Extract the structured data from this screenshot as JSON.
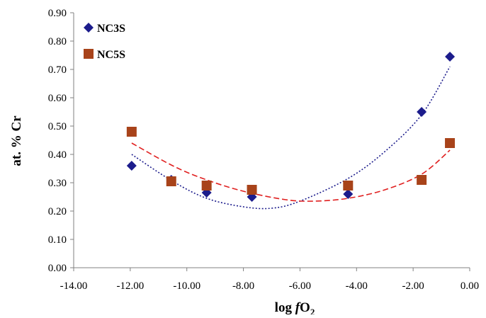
{
  "chart_data": {
    "type": "scatter",
    "title": "",
    "xlabel": "log fO2",
    "xlabel_parts": {
      "log": "log ",
      "f": "f",
      "O": "O",
      "sub": "2"
    },
    "ylabel": "at. % Cr",
    "xlim": [
      -14,
      0
    ],
    "ylim": [
      0,
      0.9
    ],
    "x_ticks": [
      -14,
      -12,
      -10,
      -8,
      -6,
      -4,
      -2,
      0
    ],
    "x_tick_labels": [
      "-14.00",
      "-12.00",
      "-10.00",
      "-8.00",
      "-6.00",
      "-4.00",
      "-2.00",
      "0.00"
    ],
    "y_ticks": [
      0,
      0.1,
      0.2,
      0.3,
      0.4,
      0.5,
      0.6,
      0.7,
      0.8,
      0.9
    ],
    "y_tick_labels": [
      "0.00",
      "0.10",
      "0.20",
      "0.30",
      "0.40",
      "0.50",
      "0.60",
      "0.70",
      "0.80",
      "0.90"
    ],
    "grid": false,
    "legend": "top-left",
    "series": [
      {
        "name": "NC3S",
        "marker": "diamond",
        "color": "#1c1c8c",
        "points": [
          {
            "x": -11.95,
            "y": 0.36
          },
          {
            "x": -10.55,
            "y": 0.31
          },
          {
            "x": -9.3,
            "y": 0.265
          },
          {
            "x": -7.7,
            "y": 0.25
          },
          {
            "x": -4.3,
            "y": 0.26
          },
          {
            "x": -1.7,
            "y": 0.55
          },
          {
            "x": -0.7,
            "y": 0.745
          }
        ],
        "trendline": {
          "type": "polynomial",
          "style": "dotted",
          "color": "#1c1c8c",
          "x_range": [
            -11.95,
            -0.7
          ],
          "points": [
            {
              "x": -11.95,
              "y": 0.4
            },
            {
              "x": -10.5,
              "y": 0.305
            },
            {
              "x": -9.3,
              "y": 0.245
            },
            {
              "x": -8.0,
              "y": 0.215
            },
            {
              "x": -7.0,
              "y": 0.21
            },
            {
              "x": -6.0,
              "y": 0.235
            },
            {
              "x": -4.3,
              "y": 0.315
            },
            {
              "x": -3.0,
              "y": 0.41
            },
            {
              "x": -1.7,
              "y": 0.54
            },
            {
              "x": -0.7,
              "y": 0.71
            }
          ]
        }
      },
      {
        "name": "NC5S",
        "marker": "square",
        "color": "#a8431a",
        "points": [
          {
            "x": -11.95,
            "y": 0.48
          },
          {
            "x": -10.55,
            "y": 0.305
          },
          {
            "x": -9.3,
            "y": 0.29
          },
          {
            "x": -7.7,
            "y": 0.275
          },
          {
            "x": -4.3,
            "y": 0.29
          },
          {
            "x": -1.7,
            "y": 0.31
          },
          {
            "x": -0.7,
            "y": 0.44
          }
        ],
        "trendline": {
          "type": "polynomial",
          "style": "dashed",
          "color": "#e02020",
          "x_range": [
            -11.95,
            -0.7
          ],
          "points": [
            {
              "x": -11.95,
              "y": 0.44
            },
            {
              "x": -10.5,
              "y": 0.36
            },
            {
              "x": -9.3,
              "y": 0.31
            },
            {
              "x": -8.0,
              "y": 0.27
            },
            {
              "x": -6.5,
              "y": 0.24
            },
            {
              "x": -5.5,
              "y": 0.235
            },
            {
              "x": -4.3,
              "y": 0.245
            },
            {
              "x": -3.0,
              "y": 0.275
            },
            {
              "x": -1.7,
              "y": 0.33
            },
            {
              "x": -0.7,
              "y": 0.415
            }
          ]
        }
      }
    ]
  }
}
